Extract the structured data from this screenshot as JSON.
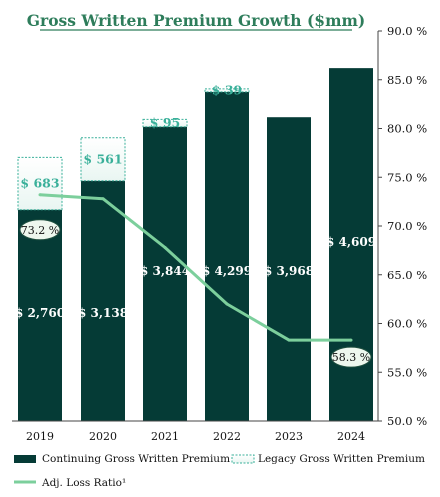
{
  "chart_data": {
    "type": "bar",
    "title": "Gross Written Premium Growth ($mm)",
    "categories": [
      "2019",
      "2020",
      "2021",
      "2022",
      "2023",
      "2024"
    ],
    "series": [
      {
        "name": "Continuing Gross Written Premium",
        "kind": "bar",
        "color": "#053b36",
        "values": [
          2760,
          3138,
          3844,
          4299,
          3968,
          4609
        ],
        "labels": [
          "$ 2,760",
          "$ 3,138",
          "$ 3,844",
          "$ 4,299",
          "$ 3,968",
          "$ 4,609"
        ]
      },
      {
        "name": "Legacy Gross Written Premium",
        "kind": "stacked-bar-outline",
        "color": "#3ab09a",
        "values": [
          683,
          561,
          95,
          39,
          null,
          null
        ],
        "labels": [
          "$ 683",
          "$ 561",
          "$ 95",
          "$ 39",
          "",
          ""
        ]
      },
      {
        "name": "Adj. Loss Ratio¹",
        "kind": "line",
        "axis": "right",
        "color": "#7ccf9c",
        "values": [
          73.2,
          72.8,
          67.8,
          62.0,
          58.3,
          58.3
        ],
        "labels": [
          "73.2 %",
          "",
          "",
          "",
          "",
          "58.3 %"
        ]
      }
    ],
    "y_right": {
      "range": [
        50,
        90
      ],
      "ticks": [
        "90.0 %",
        "85.0 %",
        "80.0 %",
        "75.0 %",
        "70.0 %",
        "65.0 %",
        "60.0 %",
        "55.0 %",
        "50.0 %"
      ],
      "tick_values": [
        90,
        85,
        80,
        75,
        70,
        65,
        60,
        55,
        50
      ]
    },
    "gwp_scale_max": 5094,
    "legend": {
      "placement": "bottom",
      "items": [
        "Continuing Gross Written Premium",
        "Legacy Gross Written Premium",
        "Adj. Loss Ratio¹"
      ]
    },
    "grid": false
  }
}
